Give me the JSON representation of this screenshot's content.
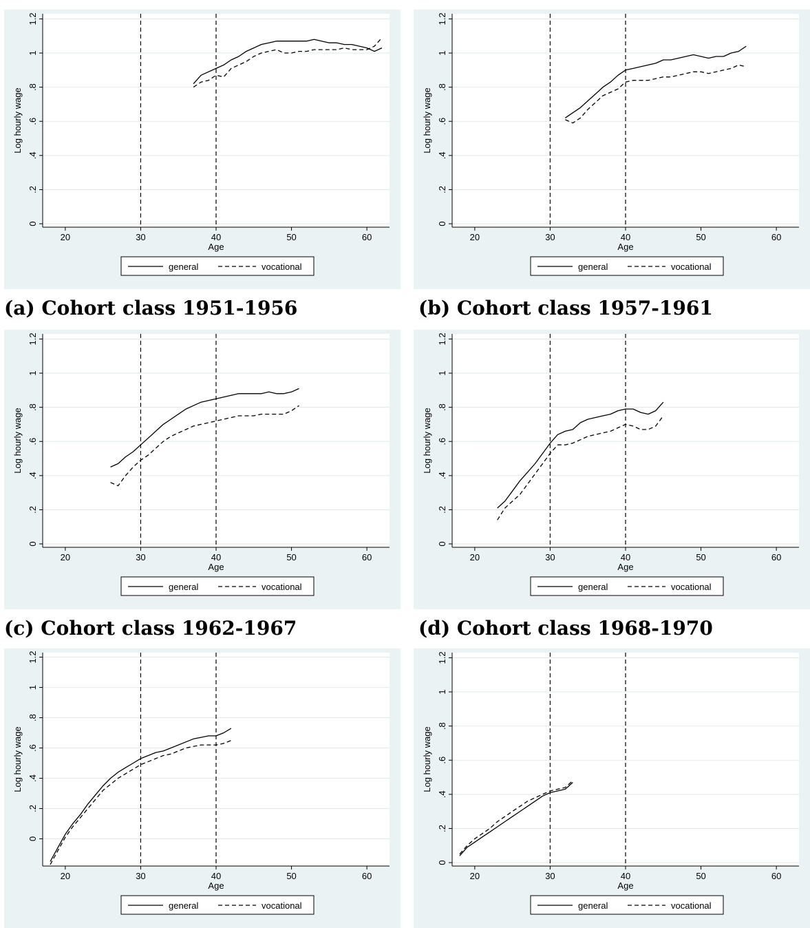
{
  "chart_data": [
    {
      "type": "line",
      "caption": "(a) Cohort class 1951-1956",
      "xlabel": "Age",
      "ylabel": "Log hourly wage",
      "xlim": [
        17,
        63
      ],
      "ylim": [
        -0.02,
        1.23
      ],
      "xticks": [
        20,
        30,
        40,
        50,
        60
      ],
      "xtick_labels": [
        "20",
        "30",
        "40",
        "50",
        "60"
      ],
      "yticks": [
        0,
        0.2,
        0.4,
        0.6,
        0.8,
        1,
        1.2
      ],
      "ytick_labels": [
        "0",
        ".2",
        ".4",
        ".6",
        ".8",
        "1",
        "1.2"
      ],
      "vlines": [
        30,
        40
      ],
      "legend": {
        "position": "bottom",
        "entries": [
          "general",
          "vocational"
        ]
      },
      "series": [
        {
          "name": "general",
          "x": [
            37,
            38,
            39,
            40,
            41,
            42,
            43,
            44,
            45,
            46,
            47,
            48,
            49,
            50,
            51,
            52,
            53,
            54,
            55,
            56,
            57,
            58,
            59,
            60,
            61,
            62
          ],
          "y": [
            0.82,
            0.87,
            0.89,
            0.91,
            0.93,
            0.96,
            0.98,
            1.01,
            1.03,
            1.05,
            1.06,
            1.07,
            1.07,
            1.07,
            1.07,
            1.07,
            1.08,
            1.07,
            1.06,
            1.06,
            1.05,
            1.05,
            1.04,
            1.03,
            1.01,
            1.03
          ]
        },
        {
          "name": "vocational",
          "x": [
            37,
            38,
            39,
            40,
            41,
            42,
            43,
            44,
            45,
            46,
            47,
            48,
            49,
            50,
            51,
            52,
            53,
            54,
            55,
            56,
            57,
            58,
            59,
            60,
            61,
            62
          ],
          "y": [
            0.8,
            0.83,
            0.84,
            0.87,
            0.86,
            0.91,
            0.93,
            0.95,
            0.98,
            1.0,
            1.01,
            1.02,
            1.0,
            1.0,
            1.01,
            1.01,
            1.02,
            1.02,
            1.02,
            1.02,
            1.03,
            1.02,
            1.02,
            1.02,
            1.04,
            1.09
          ]
        }
      ]
    },
    {
      "type": "line",
      "caption": "(b) Cohort class 1957-1961",
      "xlabel": "Age",
      "ylabel": "Log hourly wage",
      "xlim": [
        17,
        63
      ],
      "ylim": [
        -0.02,
        1.23
      ],
      "xticks": [
        20,
        30,
        40,
        50,
        60
      ],
      "xtick_labels": [
        "20",
        "30",
        "40",
        "50",
        "60"
      ],
      "yticks": [
        0,
        0.2,
        0.4,
        0.6,
        0.8,
        1,
        1.2
      ],
      "ytick_labels": [
        "0",
        ".2",
        ".4",
        ".6",
        ".8",
        "1",
        "1.2"
      ],
      "vlines": [
        30,
        40
      ],
      "legend": {
        "position": "bottom",
        "entries": [
          "general",
          "vocational"
        ]
      },
      "series": [
        {
          "name": "general",
          "x": [
            32,
            33,
            34,
            35,
            36,
            37,
            38,
            39,
            40,
            41,
            42,
            43,
            44,
            45,
            46,
            47,
            48,
            49,
            50,
            51,
            52,
            53,
            54,
            55,
            56
          ],
          "y": [
            0.62,
            0.65,
            0.68,
            0.72,
            0.76,
            0.8,
            0.83,
            0.87,
            0.9,
            0.91,
            0.92,
            0.93,
            0.94,
            0.96,
            0.96,
            0.97,
            0.98,
            0.99,
            0.98,
            0.97,
            0.98,
            0.98,
            1.0,
            1.01,
            1.04
          ]
        },
        {
          "name": "vocational",
          "x": [
            32,
            33,
            34,
            35,
            36,
            37,
            38,
            39,
            40,
            41,
            42,
            43,
            44,
            45,
            46,
            47,
            48,
            49,
            50,
            51,
            52,
            53,
            54,
            55,
            56
          ],
          "y": [
            0.61,
            0.59,
            0.62,
            0.67,
            0.71,
            0.75,
            0.77,
            0.79,
            0.83,
            0.84,
            0.84,
            0.84,
            0.85,
            0.86,
            0.86,
            0.87,
            0.88,
            0.89,
            0.89,
            0.88,
            0.89,
            0.9,
            0.91,
            0.93,
            0.92
          ]
        }
      ]
    },
    {
      "type": "line",
      "caption": "(c) Cohort class 1962-1967",
      "xlabel": "Age",
      "ylabel": "Log hourly wage",
      "xlim": [
        17,
        63
      ],
      "ylim": [
        -0.02,
        1.23
      ],
      "xticks": [
        20,
        30,
        40,
        50,
        60
      ],
      "xtick_labels": [
        "20",
        "30",
        "40",
        "50",
        "60"
      ],
      "yticks": [
        0,
        0.2,
        0.4,
        0.6,
        0.8,
        1,
        1.2
      ],
      "ytick_labels": [
        "0",
        ".2",
        ".4",
        ".6",
        ".8",
        "1",
        "1.2"
      ],
      "vlines": [
        30,
        40
      ],
      "legend": {
        "position": "bottom",
        "entries": [
          "general",
          "vocational"
        ]
      },
      "series": [
        {
          "name": "general",
          "x": [
            26,
            27,
            28,
            29,
            30,
            31,
            32,
            33,
            34,
            35,
            36,
            37,
            38,
            39,
            40,
            41,
            42,
            43,
            44,
            45,
            46,
            47,
            48,
            49,
            50,
            51
          ],
          "y": [
            0.45,
            0.47,
            0.51,
            0.54,
            0.58,
            0.62,
            0.66,
            0.7,
            0.73,
            0.76,
            0.79,
            0.81,
            0.83,
            0.84,
            0.85,
            0.86,
            0.87,
            0.88,
            0.88,
            0.88,
            0.88,
            0.89,
            0.88,
            0.88,
            0.89,
            0.91
          ]
        },
        {
          "name": "vocational",
          "x": [
            26,
            27,
            28,
            29,
            30,
            31,
            32,
            33,
            34,
            35,
            36,
            37,
            38,
            39,
            40,
            41,
            42,
            43,
            44,
            45,
            46,
            47,
            48,
            49,
            50,
            51
          ],
          "y": [
            0.36,
            0.34,
            0.4,
            0.45,
            0.49,
            0.52,
            0.56,
            0.6,
            0.63,
            0.65,
            0.67,
            0.69,
            0.7,
            0.71,
            0.72,
            0.73,
            0.74,
            0.75,
            0.75,
            0.75,
            0.76,
            0.76,
            0.76,
            0.76,
            0.78,
            0.81
          ]
        }
      ]
    },
    {
      "type": "line",
      "caption": "(d) Cohort class 1968-1970",
      "xlabel": "Age",
      "ylabel": "Log hourly wage",
      "xlim": [
        17,
        63
      ],
      "ylim": [
        -0.02,
        1.23
      ],
      "xticks": [
        20,
        30,
        40,
        50,
        60
      ],
      "xtick_labels": [
        "20",
        "30",
        "40",
        "50",
        "60"
      ],
      "yticks": [
        0,
        0.2,
        0.4,
        0.6,
        0.8,
        1,
        1.2
      ],
      "ytick_labels": [
        "0",
        ".2",
        ".4",
        ".6",
        ".8",
        "1",
        "1.2"
      ],
      "vlines": [
        30,
        40
      ],
      "legend": {
        "position": "bottom",
        "entries": [
          "general",
          "vocational"
        ]
      },
      "series": [
        {
          "name": "general",
          "x": [
            23,
            24,
            25,
            26,
            27,
            28,
            29,
            30,
            31,
            32,
            33,
            34,
            35,
            36,
            37,
            38,
            39,
            40,
            41,
            42,
            43,
            44,
            45
          ],
          "y": [
            0.21,
            0.25,
            0.31,
            0.37,
            0.42,
            0.47,
            0.53,
            0.59,
            0.64,
            0.66,
            0.67,
            0.71,
            0.73,
            0.74,
            0.75,
            0.76,
            0.78,
            0.79,
            0.79,
            0.77,
            0.76,
            0.78,
            0.83
          ]
        },
        {
          "name": "vocational",
          "x": [
            23,
            24,
            25,
            26,
            27,
            28,
            29,
            30,
            31,
            32,
            33,
            34,
            35,
            36,
            37,
            38,
            39,
            40,
            41,
            42,
            43,
            44,
            45
          ],
          "y": [
            0.14,
            0.21,
            0.25,
            0.29,
            0.35,
            0.41,
            0.47,
            0.53,
            0.58,
            0.58,
            0.59,
            0.61,
            0.63,
            0.64,
            0.65,
            0.66,
            0.68,
            0.7,
            0.69,
            0.67,
            0.67,
            0.69,
            0.75
          ]
        }
      ]
    },
    {
      "type": "line",
      "caption": "",
      "xlabel": "Age",
      "ylabel": "Log hourly wage",
      "xlim": [
        17,
        63
      ],
      "ylim": [
        -0.18,
        1.23
      ],
      "xticks": [
        20,
        30,
        40,
        50,
        60
      ],
      "xtick_labels": [
        "20",
        "30",
        "40",
        "50",
        "60"
      ],
      "yticks": [
        0,
        0.2,
        0.4,
        0.6,
        0.8,
        1,
        1.2
      ],
      "ytick_labels": [
        "0",
        ".2",
        ".4",
        ".6",
        ".8",
        "1",
        "1.2"
      ],
      "vlines": [
        30,
        40
      ],
      "legend": {
        "position": "bottom",
        "entries": [
          "general",
          "vocational"
        ]
      },
      "series": [
        {
          "name": "general",
          "x": [
            18,
            19,
            20,
            21,
            22,
            23,
            24,
            25,
            26,
            27,
            28,
            29,
            30,
            31,
            32,
            33,
            34,
            35,
            36,
            37,
            38,
            39,
            40,
            41,
            42
          ],
          "y": [
            -0.15,
            -0.06,
            0.03,
            0.1,
            0.16,
            0.23,
            0.29,
            0.35,
            0.4,
            0.44,
            0.47,
            0.5,
            0.53,
            0.55,
            0.57,
            0.58,
            0.6,
            0.62,
            0.64,
            0.66,
            0.67,
            0.68,
            0.68,
            0.7,
            0.73
          ]
        },
        {
          "name": "vocational",
          "x": [
            18,
            19,
            20,
            21,
            22,
            23,
            24,
            25,
            26,
            27,
            28,
            29,
            30,
            31,
            32,
            33,
            34,
            35,
            36,
            37,
            38,
            39,
            40,
            41,
            42
          ],
          "y": [
            -0.17,
            -0.08,
            0.01,
            0.08,
            0.14,
            0.2,
            0.26,
            0.32,
            0.36,
            0.4,
            0.43,
            0.46,
            0.49,
            0.51,
            0.53,
            0.55,
            0.56,
            0.58,
            0.6,
            0.61,
            0.62,
            0.62,
            0.62,
            0.63,
            0.65
          ]
        }
      ]
    },
    {
      "type": "line",
      "caption": "",
      "xlabel": "Age",
      "ylabel": "Log hourly wage",
      "xlim": [
        17,
        63
      ],
      "ylim": [
        -0.02,
        1.23
      ],
      "xticks": [
        20,
        30,
        40,
        50,
        60
      ],
      "xtick_labels": [
        "20",
        "30",
        "40",
        "50",
        "60"
      ],
      "yticks": [
        0,
        0.2,
        0.4,
        0.6,
        0.8,
        1,
        1.2
      ],
      "ytick_labels": [
        "0",
        ".2",
        ".4",
        ".6",
        ".8",
        "1",
        "1.2"
      ],
      "vlines": [
        30,
        40
      ],
      "legend": {
        "position": "bottom",
        "entries": [
          "general",
          "vocational"
        ]
      },
      "series": [
        {
          "name": "general",
          "x": [
            18,
            19,
            20,
            21,
            22,
            23,
            24,
            25,
            26,
            27,
            28,
            29,
            30,
            31,
            32,
            33
          ],
          "y": [
            0.04,
            0.09,
            0.12,
            0.15,
            0.18,
            0.21,
            0.24,
            0.27,
            0.3,
            0.33,
            0.36,
            0.39,
            0.41,
            0.42,
            0.43,
            0.47
          ]
        },
        {
          "name": "vocational",
          "x": [
            18,
            19,
            20,
            21,
            22,
            23,
            24,
            25,
            26,
            27,
            28,
            29,
            30,
            31,
            32,
            33
          ],
          "y": [
            0.05,
            0.1,
            0.14,
            0.17,
            0.2,
            0.24,
            0.27,
            0.3,
            0.33,
            0.36,
            0.38,
            0.4,
            0.42,
            0.43,
            0.44,
            0.48
          ]
        }
      ]
    }
  ]
}
